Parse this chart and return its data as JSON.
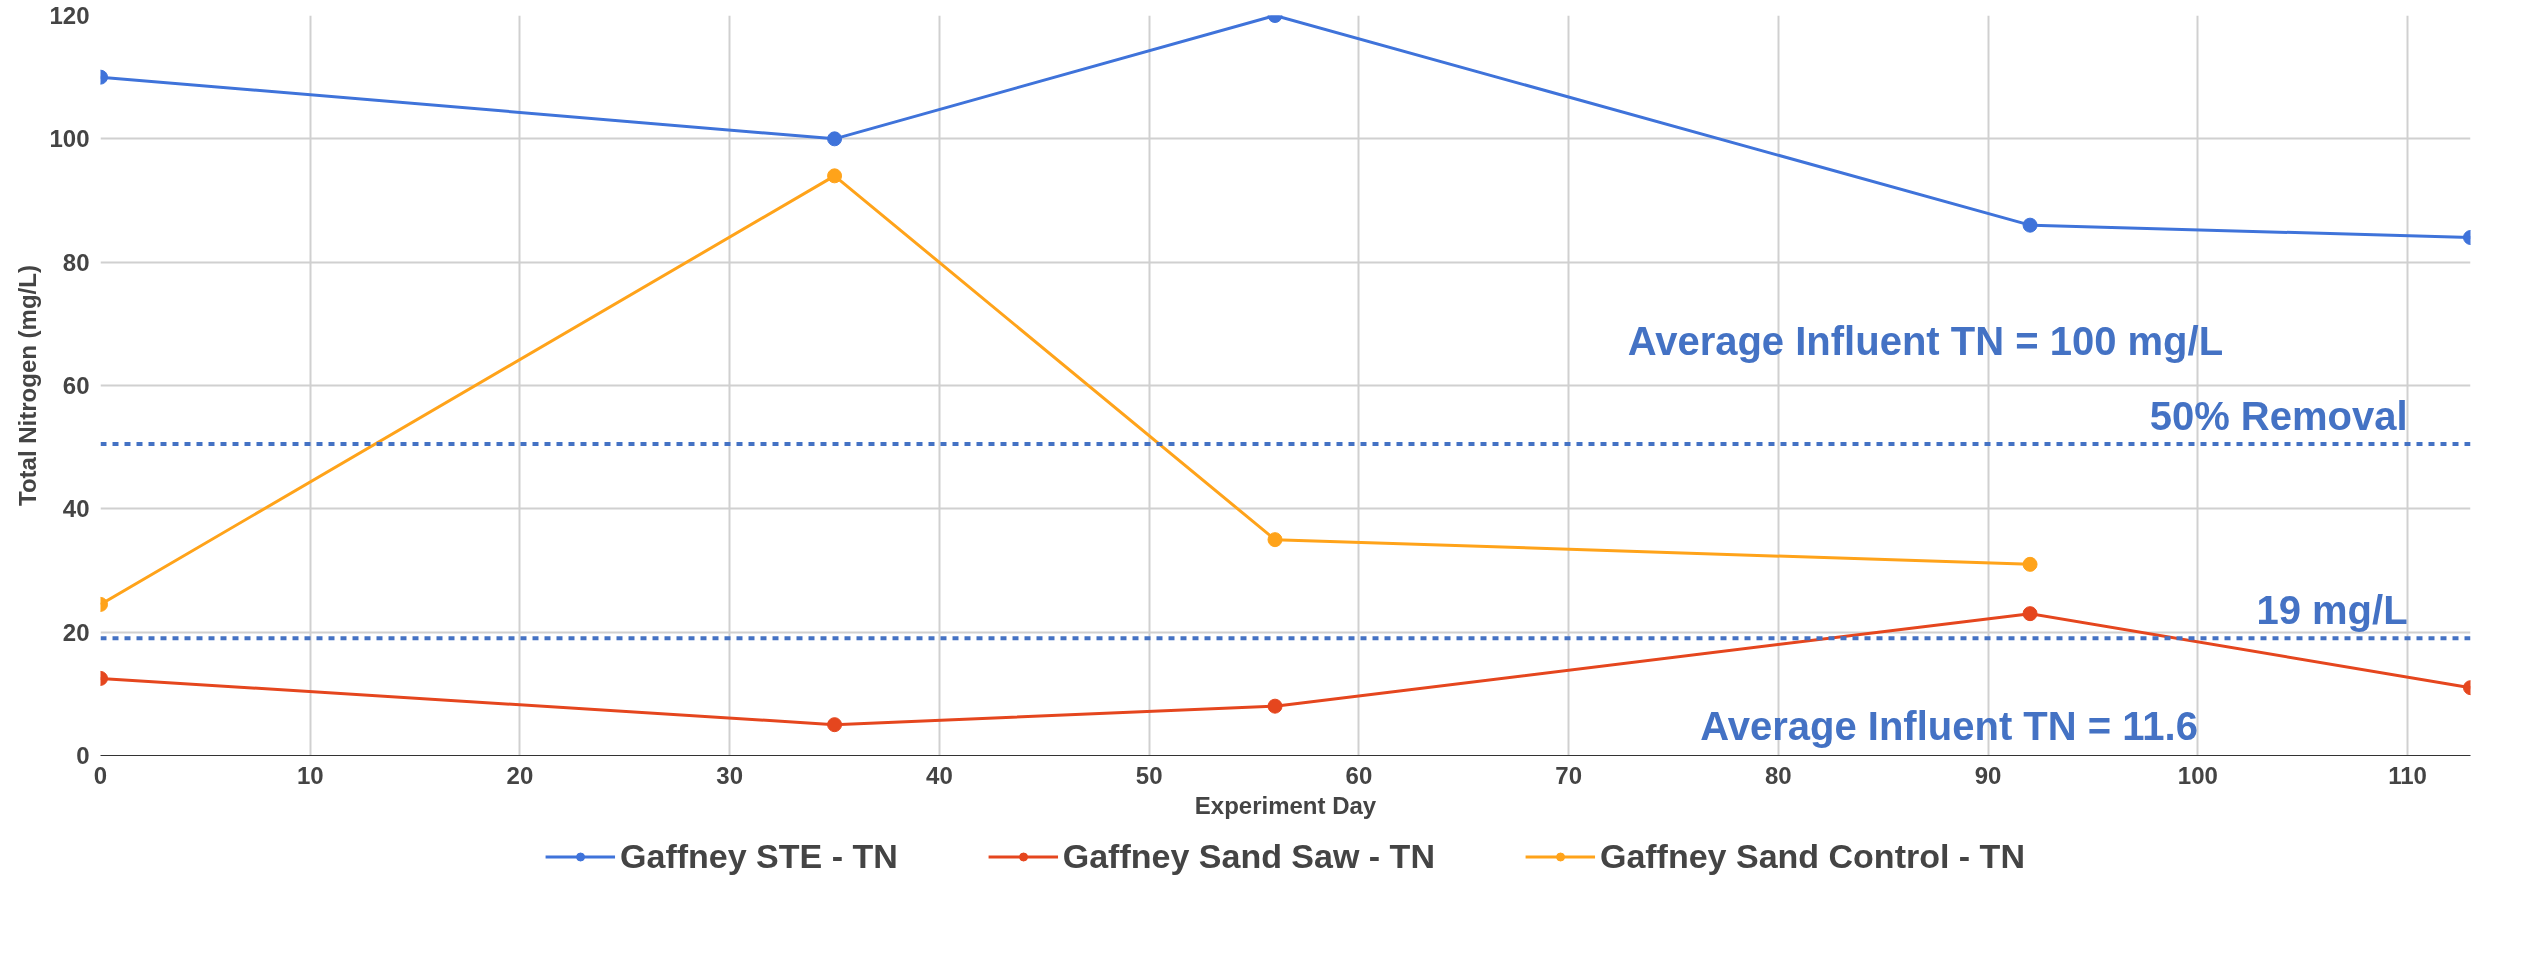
{
  "chart_data": {
    "type": "line",
    "xlabel": "Experiment Day",
    "ylabel": "Total Nitrogen (mg/L)",
    "xlim": [
      0,
      113
    ],
    "xticks": [
      0,
      10,
      20,
      30,
      40,
      50,
      60,
      70,
      80,
      90,
      100,
      110
    ],
    "ylim": [
      0,
      120
    ],
    "yticks": [
      0,
      20,
      40,
      60,
      80,
      100,
      120
    ],
    "series": [
      {
        "name": "Gaffney STE - TN",
        "color": "#3f73da",
        "x": [
          0,
          35,
          56,
          92,
          113
        ],
        "values": [
          110,
          100,
          120,
          86,
          84
        ]
      },
      {
        "name": "Gaffney Sand Saw - TN",
        "color": "#e5461e",
        "x": [
          0,
          35,
          56,
          92,
          113
        ],
        "values": [
          12.5,
          5,
          8,
          23,
          11
        ]
      },
      {
        "name": "Gaffney Sand Control - TN",
        "color": "#ffa31a",
        "x": [
          0,
          35,
          56,
          92
        ],
        "values": [
          24.5,
          94,
          35,
          31
        ]
      }
    ],
    "ref_lines": [
      {
        "axis": "y",
        "value": 50.5,
        "label": "50% Removal",
        "color": "#4472c4",
        "line_style": "dashed"
      },
      {
        "axis": "y",
        "value": 19,
        "label": "19 mg/L",
        "color": "#4472c4",
        "line_style": "dashed"
      }
    ],
    "annotations": [
      "Average Influent TN = 100 mg/L",
      "Average Influent TN = 11.6"
    ],
    "grid": true,
    "legend": "bottom",
    "marker": "circle",
    "line_style": "solid"
  }
}
